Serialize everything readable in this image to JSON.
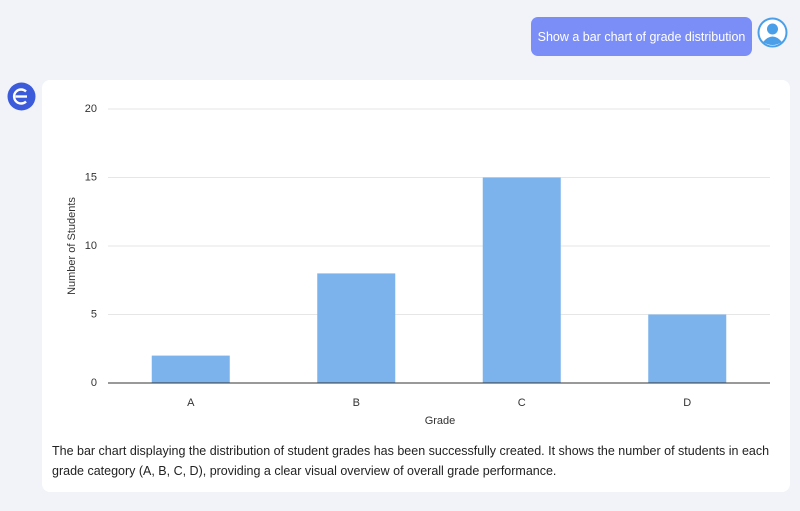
{
  "user_message": "Show a bar chart of grade distribution",
  "chart_data": {
    "type": "bar",
    "categories": [
      "A",
      "B",
      "C",
      "D"
    ],
    "values": [
      2,
      8,
      15,
      5
    ],
    "color": "#7cb3ec",
    "x_label": "Grade",
    "y_label": "Number of Students",
    "ylim": [
      0,
      20
    ],
    "yticks": [
      0,
      5,
      10,
      15,
      20
    ],
    "grid": true
  },
  "response_text": "The bar chart displaying the distribution of student grades has been successfully created. It shows the number of students in each grade category (A, B, C, D), providing a clear visual overview of overall grade performance."
}
